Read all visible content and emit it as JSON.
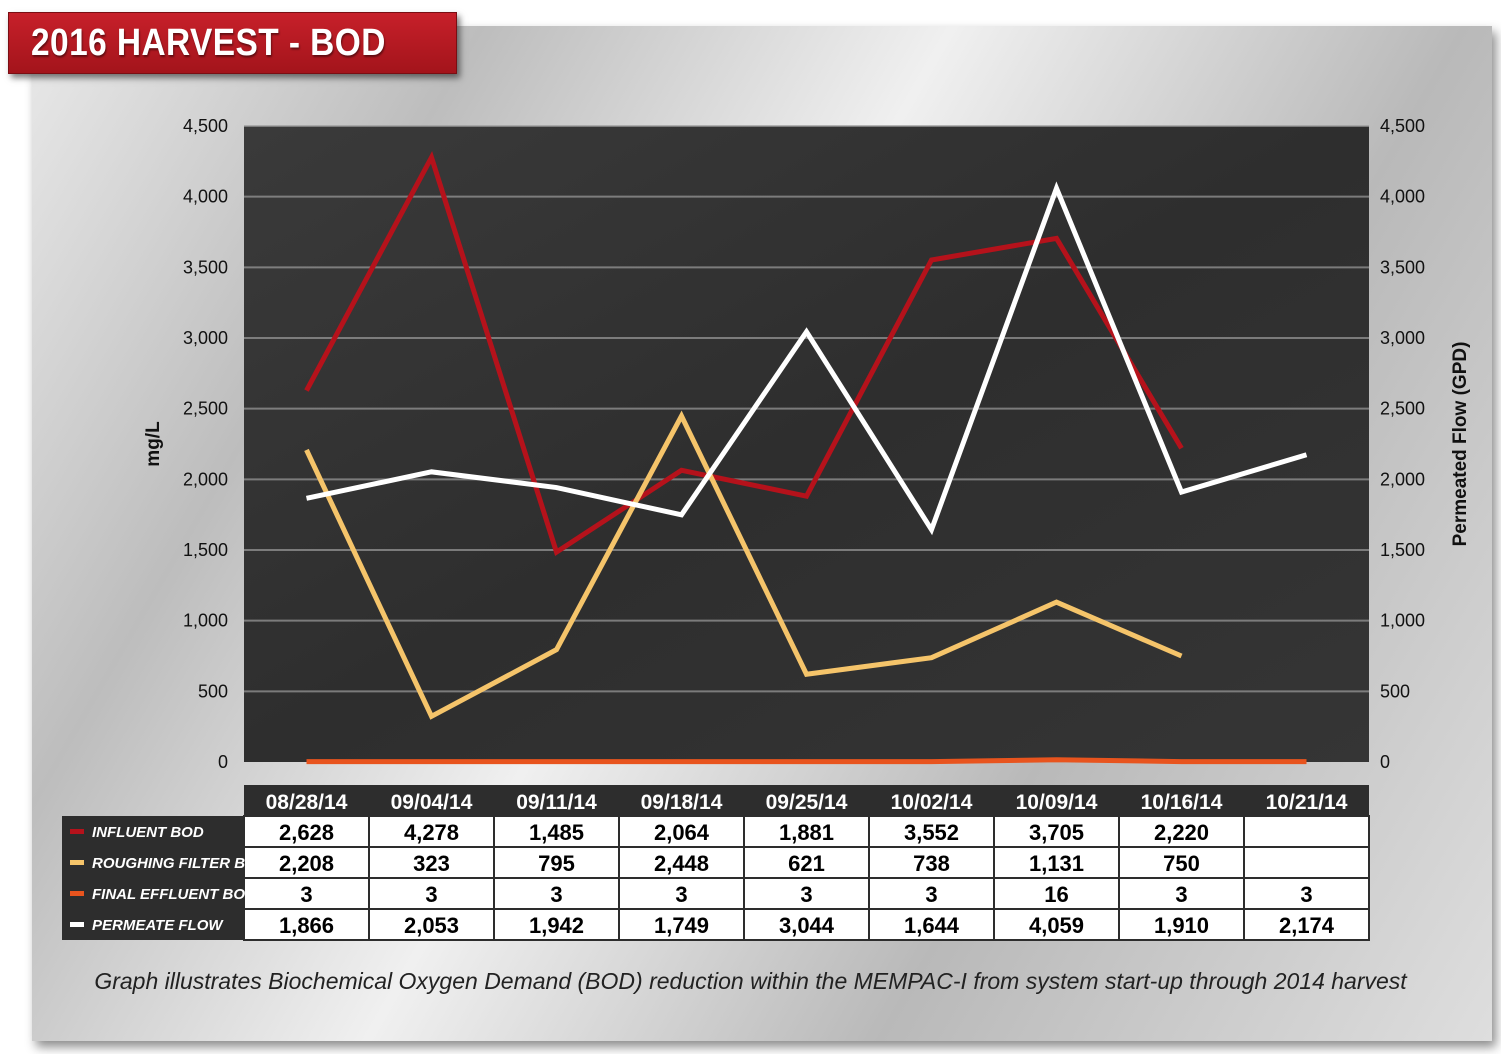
{
  "title": "2016 HARVEST - BOD",
  "caption": "Graph illustrates Biochemical Oxygen Demand (BOD) reduction within the MEMPAC-I from system start-up through 2014 harvest",
  "chart_data": {
    "type": "line",
    "x": [
      "08/28/14",
      "09/04/14",
      "09/11/14",
      "09/18/14",
      "09/25/14",
      "10/02/14",
      "10/09/14",
      "10/16/14",
      "10/21/14"
    ],
    "ylabel": "mg/L",
    "y2label": "Permeated Flow (GPD)",
    "ylim": [
      0,
      4500
    ],
    "y2lim": [
      0,
      4500
    ],
    "yticks": [
      "0",
      "500",
      "1,000",
      "1,500",
      "2,000",
      "2,500",
      "3,000",
      "3,500",
      "4,000",
      "4,500"
    ],
    "grid": true,
    "series": [
      {
        "name": "INFLUENT BOD",
        "color": "#b5121b",
        "axis": "left",
        "values": [
          2628,
          4278,
          1485,
          2064,
          1881,
          3552,
          3705,
          2220,
          null
        ],
        "labels": [
          "2,628",
          "4,278",
          "1,485",
          "2,064",
          "1,881",
          "3,552",
          "3,705",
          "2,220",
          ""
        ]
      },
      {
        "name": "ROUGHING FILTER BOD",
        "color": "#f5c46a",
        "axis": "left",
        "values": [
          2208,
          323,
          795,
          2448,
          621,
          738,
          1131,
          750,
          null
        ],
        "labels": [
          "2,208",
          "323",
          "795",
          "2,448",
          "621",
          "738",
          "1,131",
          "750",
          ""
        ]
      },
      {
        "name": "FINAL EFFLUENT BOD",
        "color": "#e8541e",
        "axis": "left",
        "values": [
          3,
          3,
          3,
          3,
          3,
          3,
          16,
          3,
          3
        ],
        "labels": [
          "3",
          "3",
          "3",
          "3",
          "3",
          "3",
          "16",
          "3",
          "3"
        ]
      },
      {
        "name": "PERMEATE FLOW",
        "color": "#ffffff",
        "axis": "right",
        "values": [
          1866,
          2053,
          1942,
          1749,
          3044,
          1644,
          4059,
          1910,
          2174
        ],
        "labels": [
          "1,866",
          "2,053",
          "1,942",
          "1,749",
          "3,044",
          "1,644",
          "4,059",
          "1,910",
          "2,174"
        ]
      }
    ]
  }
}
